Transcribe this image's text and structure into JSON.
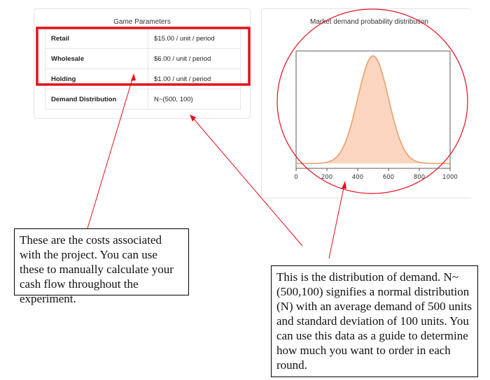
{
  "params_panel": {
    "title": "Game Parameters",
    "rows": [
      {
        "label": "Retail",
        "value": "$15.00 / unit / period"
      },
      {
        "label": "Wholesale",
        "value": "$6.00 / unit / period"
      },
      {
        "label": "Holding",
        "value": "$1.00 / unit / period"
      },
      {
        "label": "Demand Distribution",
        "value": "N~(500, 100)"
      }
    ]
  },
  "chart_panel": {
    "title": "Market demand probability distribution"
  },
  "chart_data": {
    "type": "area",
    "title": "Market demand probability distribution",
    "distribution": "normal",
    "mean": 500,
    "std": 100,
    "xlim": [
      0,
      1000
    ],
    "x_ticks": [
      "0",
      "200",
      "400",
      "600",
      "800",
      "1000"
    ],
    "fill_color": "#fbd5bf",
    "line_color": "#eba06b",
    "grid": false
  },
  "annotations": {
    "costs_callout": "These are the costs associated with the project. You can use these to manually calculate your cash flow throughout the experiment.",
    "demand_callout": "This is the distribution of demand. N~ (500,100) signifies a normal distribution (N) with an average demand of 500 units and standard deviation of 100 units. You can use this data as a guide to determine how much you want to order in each round.",
    "highlight_color": "#e3101e"
  }
}
